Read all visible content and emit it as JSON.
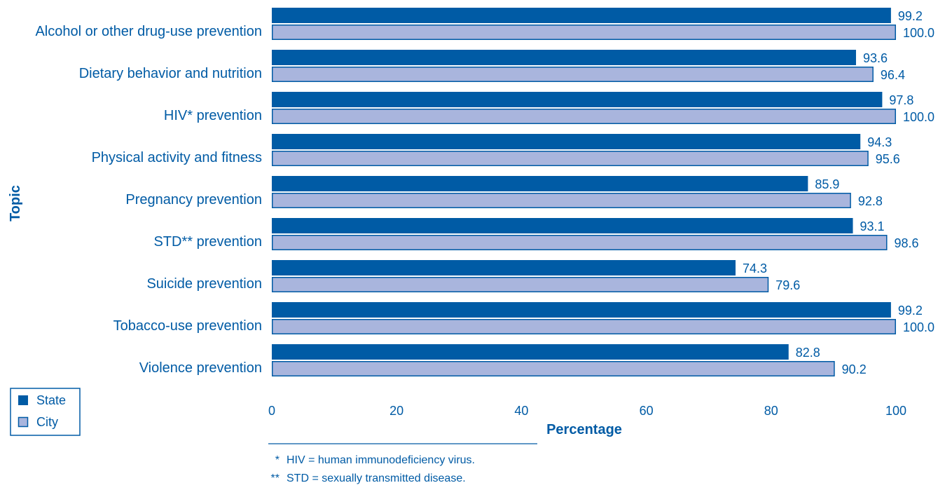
{
  "colors": {
    "state_fill": "#005ba5",
    "city_fill": "#a9b5dd",
    "text": "#005ba5",
    "stroke": "#005ba5"
  },
  "chart_data": {
    "type": "bar",
    "orientation": "horizontal",
    "categories": [
      "Alcohol or other drug-use prevention",
      "Dietary behavior and nutrition",
      "HIV* prevention",
      "Physical activity and fitness",
      "Pregnancy prevention",
      "STD** prevention",
      "Suicide prevention",
      "Tobacco-use prevention",
      "Violence prevention"
    ],
    "series": [
      {
        "name": "State",
        "values": [
          99.2,
          93.6,
          97.8,
          94.3,
          85.9,
          93.1,
          74.3,
          99.2,
          82.8
        ],
        "labels": [
          "99.2",
          "93.6",
          "97.8",
          "94.3",
          "85.9",
          "93.1",
          "74.3",
          "99.2",
          "82.8"
        ]
      },
      {
        "name": "City",
        "values": [
          100.0,
          96.4,
          100.0,
          95.6,
          92.8,
          98.6,
          79.6,
          100.0,
          90.2
        ],
        "labels": [
          "100.0",
          "96.4",
          "100.0",
          "95.6",
          "92.8",
          "98.6",
          "79.6",
          "100.0",
          "90.2"
        ]
      }
    ],
    "title": "",
    "xlabel": "Percentage",
    "ylabel": "Topic",
    "xlim": [
      0,
      100
    ],
    "xticks": [
      "0",
      "20",
      "40",
      "60",
      "80",
      "100"
    ],
    "grid": false,
    "legend_position": "bottom-left"
  },
  "footnotes": [
    {
      "marker": "*",
      "text": "HIV = human immunodeficiency virus."
    },
    {
      "marker": "**",
      "text": "STD = sexually transmitted disease."
    }
  ]
}
